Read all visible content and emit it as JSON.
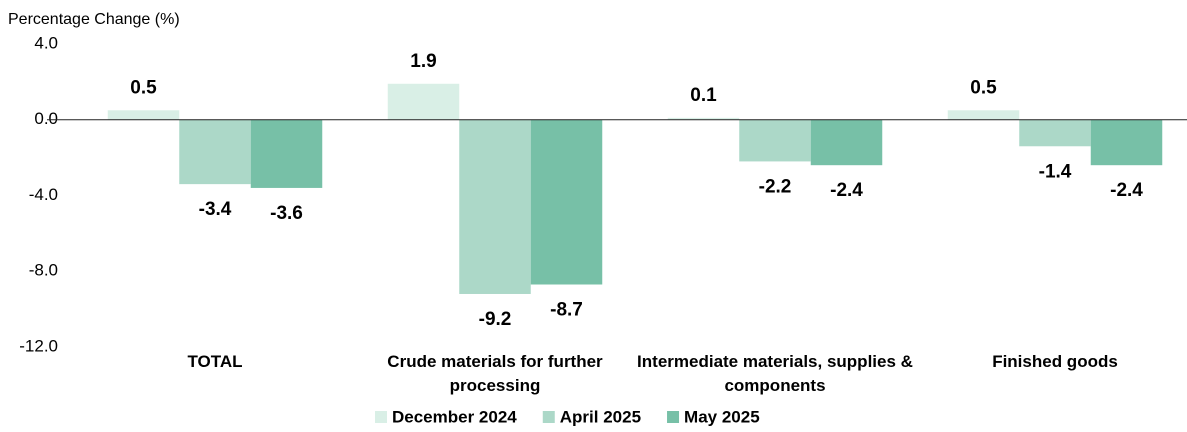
{
  "chart_data": {
    "type": "bar",
    "ylabel": "Percentage Change (%)",
    "categories": [
      "TOTAL",
      "Crude materials for further processing",
      "Intermediate materials, supplies & components",
      "Finished goods"
    ],
    "series": [
      {
        "name": "December 2024",
        "color": "#d9efe6",
        "values": [
          0.5,
          1.9,
          0.1,
          0.5
        ]
      },
      {
        "name": "April 2025",
        "color": "#acd8c8",
        "values": [
          -3.4,
          -9.2,
          -2.2,
          -1.4
        ]
      },
      {
        "name": "May 2025",
        "color": "#77c0a7",
        "values": [
          -3.6,
          -8.7,
          -2.4,
          -2.4
        ]
      }
    ],
    "ylim": [
      -12,
      4
    ],
    "yticks": [
      {
        "value": 4,
        "label": "4.0"
      },
      {
        "value": 0,
        "label": "0.0"
      },
      {
        "value": -4,
        "label": "-4.0"
      },
      {
        "value": -8,
        "label": "-8.0"
      },
      {
        "value": -12,
        "label": "-12.0"
      }
    ],
    "grid": false,
    "legend": "bottom"
  }
}
